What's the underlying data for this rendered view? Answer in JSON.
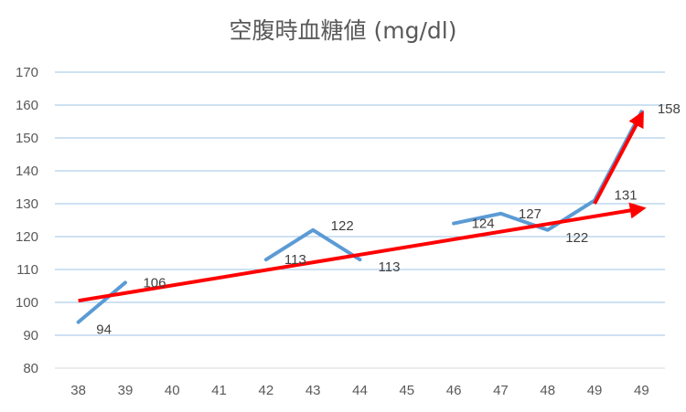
{
  "chart_data": {
    "type": "line",
    "title": "空腹時血糖値 (mg/dl)",
    "categories": [
      "38",
      "39",
      "40",
      "41",
      "42",
      "43",
      "44",
      "45",
      "46",
      "47",
      "48",
      "49",
      "49"
    ],
    "ylim": [
      80,
      170
    ],
    "yticks": [
      80,
      90,
      100,
      110,
      120,
      130,
      140,
      150,
      160,
      170
    ],
    "grid": true,
    "series": [
      {
        "color": "#5B9BD5",
        "values": [
          94,
          106,
          null,
          null,
          113,
          122,
          113,
          null,
          124,
          127,
          122,
          131,
          158
        ],
        "labels": [
          "94",
          "106",
          null,
          null,
          "113",
          "122",
          "113",
          null,
          "124",
          "127",
          "122",
          "131",
          "158"
        ]
      }
    ],
    "annotations": [
      {
        "type": "trend-arrow",
        "color": "#FF0000",
        "from": {
          "x": "38",
          "y": 100.5
        },
        "to": {
          "x": "49",
          "y": 128.5
        }
      },
      {
        "type": "trend-arrow",
        "color": "#FF0000",
        "from": {
          "x": "49",
          "y": 130
        },
        "to": {
          "x": "49",
          "y": 157
        }
      }
    ]
  }
}
